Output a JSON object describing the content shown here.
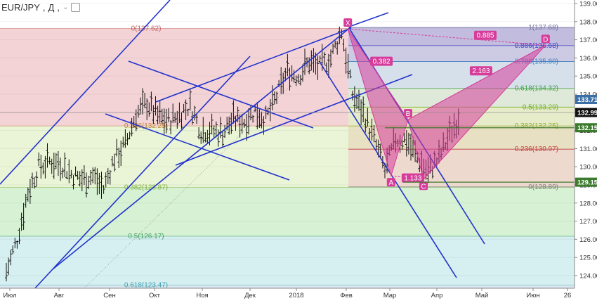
{
  "symbol": {
    "name": "EUR/JPY",
    "interval": "Д",
    "dropdown_icon": "chevron-down-icon",
    "settings_icon": "gear-icon"
  },
  "chart_data": {
    "type": "ohlc",
    "title": "EUR/JPY, Д",
    "xlabel": "",
    "ylabel": "",
    "x_ticks": [
      "Июл",
      "Авг",
      "Сен",
      "Окт",
      "Ноя",
      "Дек",
      "2018",
      "Фев",
      "Мар",
      "Апр",
      "Май",
      "Июн",
      "26"
    ],
    "y_ticks": [
      "124.00",
      "125.00",
      "126.00",
      "127.00",
      "128.00",
      "129.00",
      "130.00",
      "131.00",
      "132.00",
      "133.00",
      "134.00",
      "135.00",
      "136.00",
      "137.00",
      "138.00",
      "139.00"
    ],
    "ylim": [
      123.3,
      139.2
    ],
    "price_series_points": [
      [
        "2017-06-26",
        124.2
      ],
      [
        "2017-07-03",
        126.0
      ],
      [
        "2017-07-10",
        128.6
      ],
      [
        "2017-07-17",
        130.0
      ],
      [
        "2017-07-24",
        130.3
      ],
      [
        "2017-07-31",
        130.2
      ],
      [
        "2017-08-07",
        129.6
      ],
      [
        "2017-08-14",
        129.3
      ],
      [
        "2017-08-21",
        129.5
      ],
      [
        "2017-08-28",
        128.8
      ],
      [
        "2017-09-04",
        130.5
      ],
      [
        "2017-09-11",
        131.2
      ],
      [
        "2017-09-18",
        132.9
      ],
      [
        "2017-09-25",
        133.5
      ],
      [
        "2017-10-02",
        132.8
      ],
      [
        "2017-10-09",
        132.5
      ],
      [
        "2017-10-16",
        132.9
      ],
      [
        "2017-10-23",
        133.4
      ],
      [
        "2017-10-30",
        132.0
      ],
      [
        "2017-11-06",
        132.0
      ],
      [
        "2017-11-13",
        131.9
      ],
      [
        "2017-11-20",
        132.6
      ],
      [
        "2017-11-27",
        132.5
      ],
      [
        "2017-12-04",
        133.1
      ],
      [
        "2017-12-11",
        132.6
      ],
      [
        "2017-12-18",
        133.9
      ],
      [
        "2017-12-25",
        135.3
      ],
      [
        "2018-01-01",
        135.0
      ],
      [
        "2018-01-08",
        135.8
      ],
      [
        "2018-01-15",
        135.5
      ],
      [
        "2018-01-22",
        136.0
      ],
      [
        "2018-01-29",
        137.5
      ],
      [
        "2018-02-05",
        134.0
      ],
      [
        "2018-02-12",
        133.0
      ],
      [
        "2018-02-19",
        131.5
      ],
      [
        "2018-02-26",
        129.8
      ],
      [
        "2018-03-05",
        131.5
      ],
      [
        "2018-03-12",
        131.5
      ],
      [
        "2018-03-19",
        130.5
      ],
      [
        "2018-03-26",
        129.7
      ],
      [
        "2018-04-02",
        130.5
      ],
      [
        "2018-04-09",
        131.8
      ],
      [
        "2018-04-16",
        133.0
      ]
    ],
    "price_labels": [
      {
        "value": 133.71,
        "text": "133.71",
        "color": "#ffffff",
        "bg": "#3a6ea5"
      },
      {
        "value": 132.99,
        "text": "132.99",
        "color": "#ffffff",
        "bg": "#111111"
      },
      {
        "value": 132.15,
        "text": "132.15",
        "color": "#ffffff",
        "bg": "#3c7a2e"
      },
      {
        "value": 129.15,
        "text": "129.15",
        "color": "#ffffff",
        "bg": "#3c7a2e"
      }
    ],
    "fib_left": {
      "color_hint": "large retracement",
      "levels": [
        {
          "ratio": 0,
          "value": 137.62,
          "label": "0(137.62)"
        },
        {
          "ratio": 0.236,
          "value": 132.25,
          "label": "0.236(132.25)"
        },
        {
          "ratio": 0.382,
          "value": 128.87,
          "label": "0.382(128.87)"
        },
        {
          "ratio": 0.5,
          "value": 126.17,
          "label": "0.5(126.17)"
        },
        {
          "ratio": 0.618,
          "value": 123.47,
          "label": "0.618(123.47)"
        }
      ]
    },
    "fib_right": {
      "levels": [
        {
          "ratio": 1,
          "value": 137.68,
          "label": "1(137.68)"
        },
        {
          "ratio": 0.886,
          "value": 136.68,
          "label": "0.886(136.68)"
        },
        {
          "ratio": 0.786,
          "value": 135.8,
          "label": "0.786(135.80)"
        },
        {
          "ratio": 0.618,
          "value": 134.32,
          "label": "0.618(134.32)"
        },
        {
          "ratio": 0.5,
          "value": 133.29,
          "label": "0.5(133.29)"
        },
        {
          "ratio": 0.382,
          "value": 132.25,
          "label": "0.382(132.25)"
        },
        {
          "ratio": 0.236,
          "value": 130.97,
          "label": "0.236(130.97)"
        },
        {
          "ratio": 0,
          "value": 128.89,
          "label": "0(128.89)"
        }
      ]
    },
    "harmonic_pattern": {
      "points": [
        {
          "name": "X",
          "date": "2018-02-02",
          "value": 137.6
        },
        {
          "name": "A",
          "date": "2018-03-02",
          "value": 129.5
        },
        {
          "name": "B",
          "date": "2018-03-13",
          "value": 132.6
        },
        {
          "name": "C",
          "date": "2018-03-23",
          "value": 129.3
        },
        {
          "name": "D",
          "date": "2018-06-10",
          "value": 136.7
        }
      ],
      "ratios": [
        {
          "text": "0.382",
          "between": "XB"
        },
        {
          "text": "1.133",
          "between": "AC"
        },
        {
          "text": "2.163",
          "between": "BD"
        },
        {
          "text": "0.885",
          "between": "XD"
        }
      ]
    }
  }
}
